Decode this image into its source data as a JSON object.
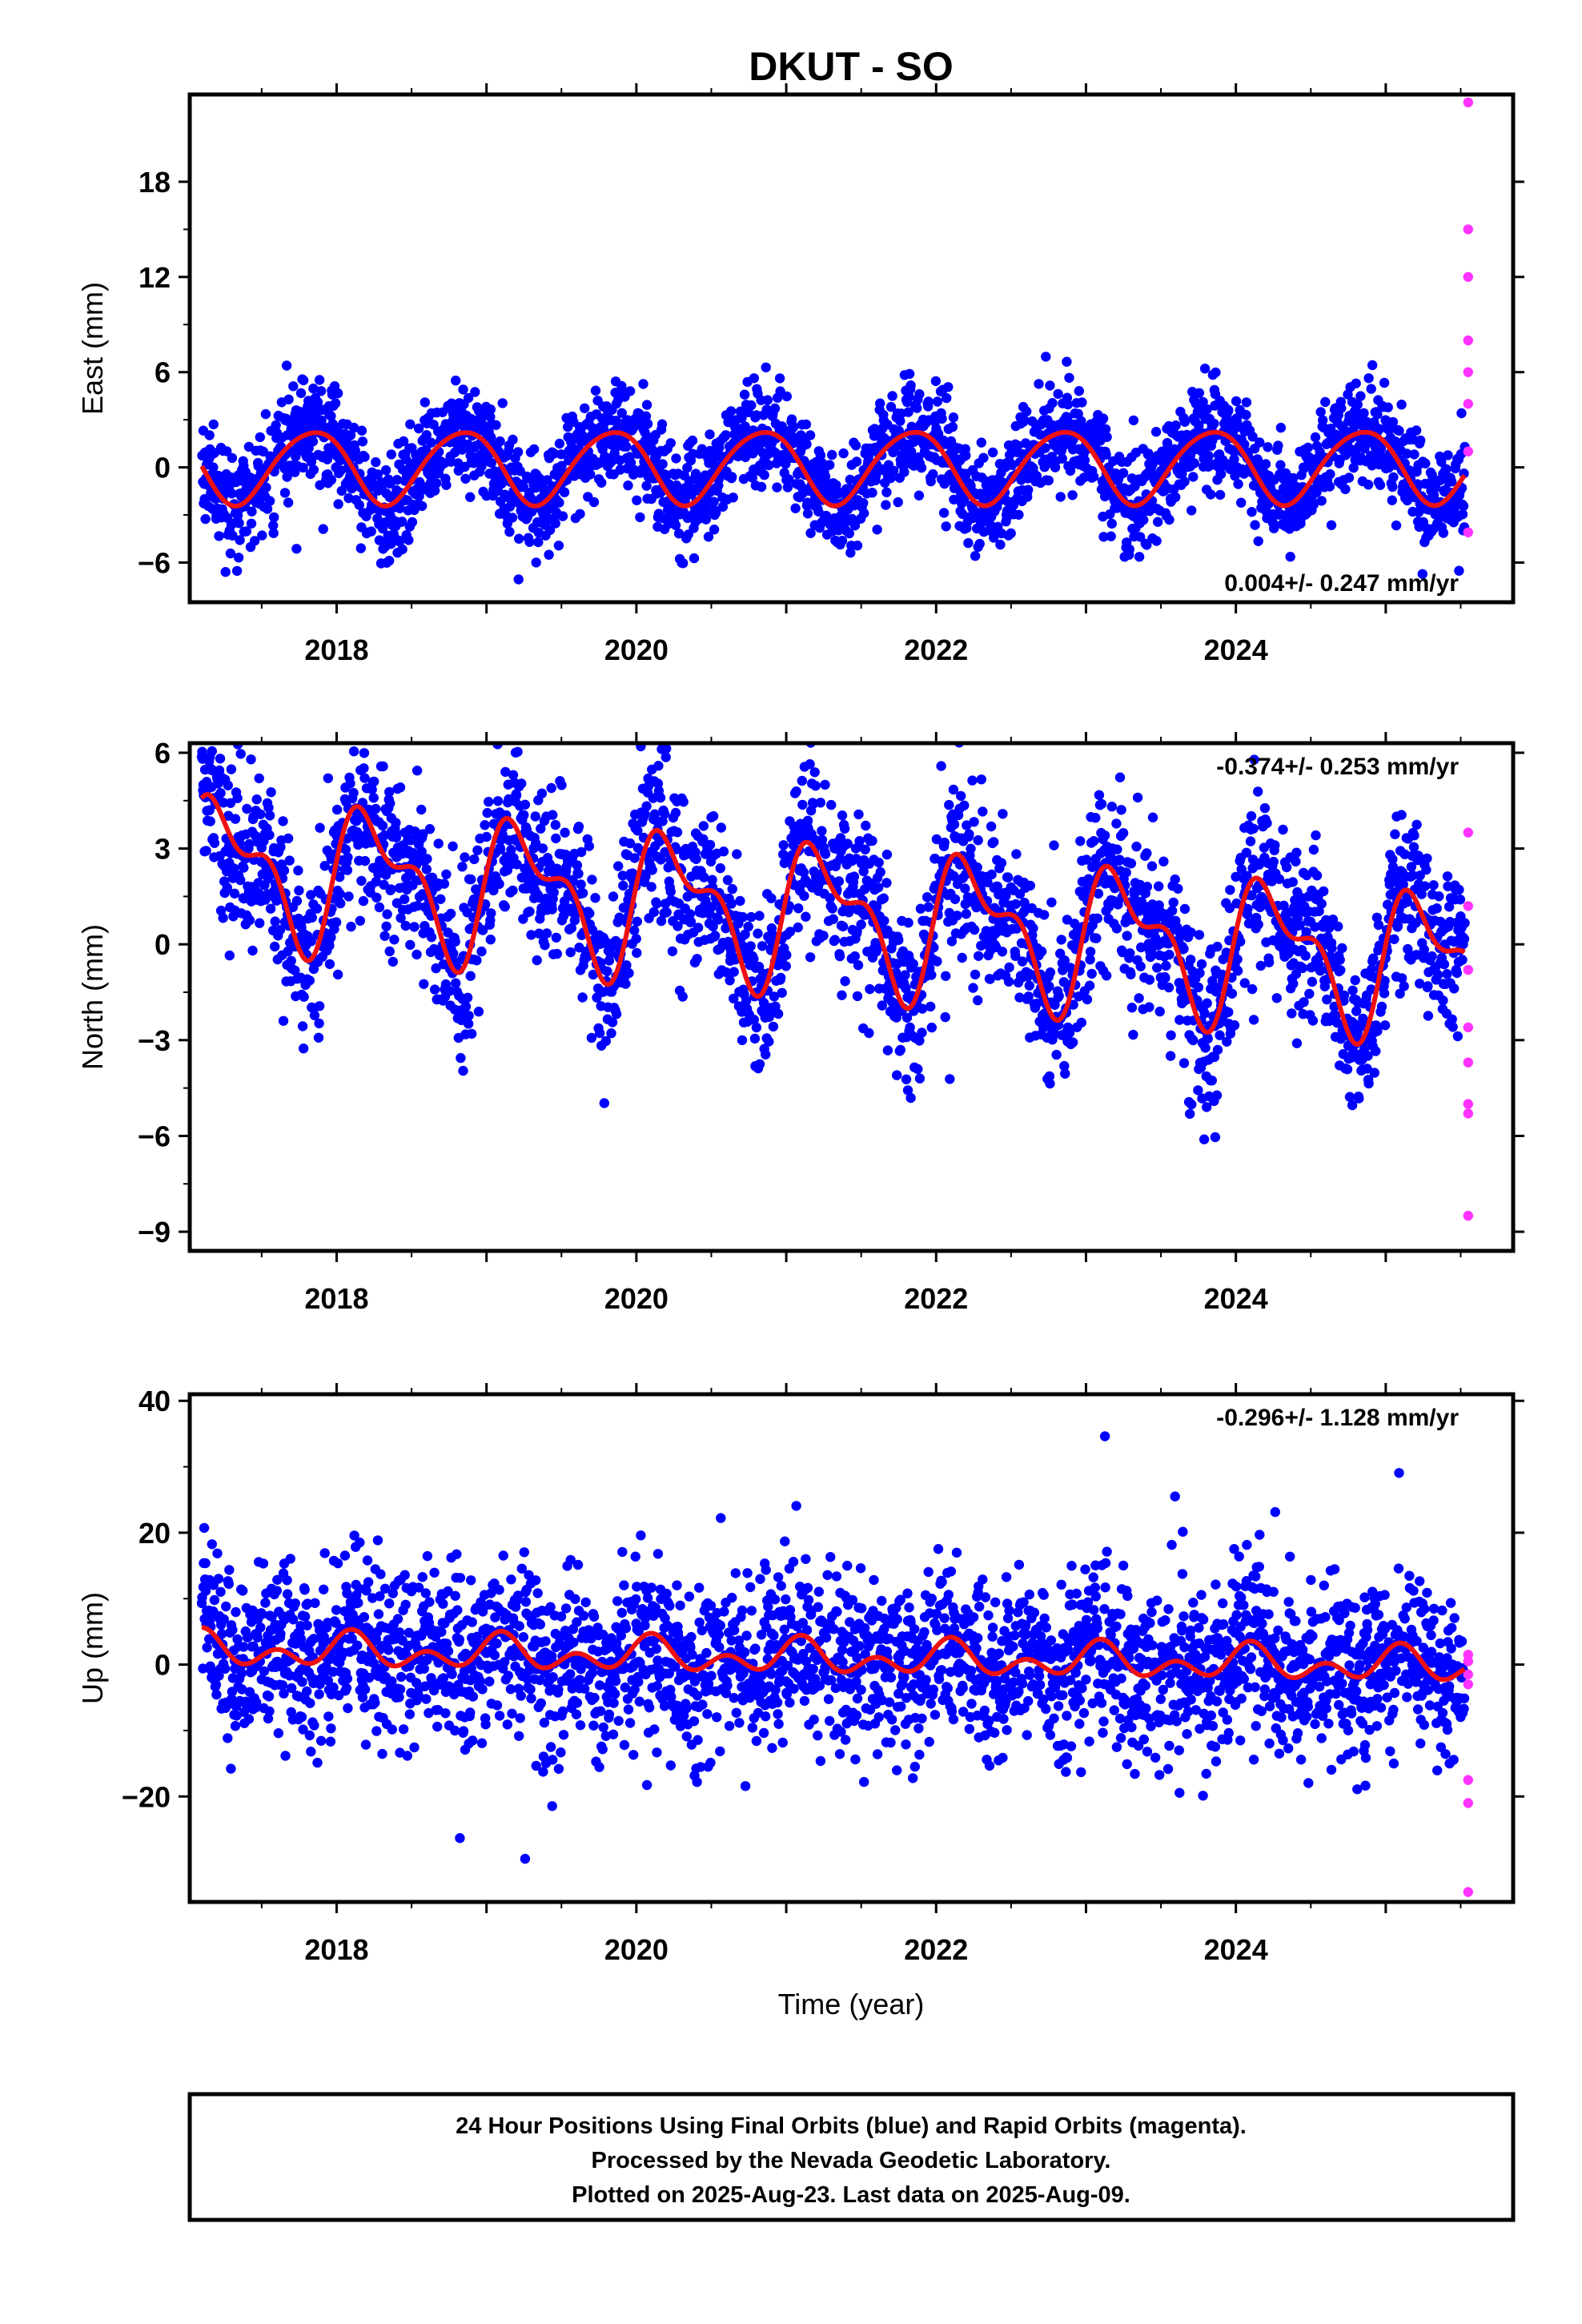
{
  "title": "DKUT - SO",
  "colors": {
    "final": "#0000ff",
    "rapid": "#ff33ff",
    "model": "#ee1111",
    "frame": "#000000"
  },
  "footer": {
    "line1": "24 Hour Positions Using Final Orbits (blue) and Rapid Orbits (magenta).",
    "line2": "Processed by the Nevada Geodetic Laboratory.",
    "line3": "Plotted on 2025-Aug-23. Last data on 2025-Aug-09."
  },
  "xlabel": "Time (year)",
  "chart_data": [
    {
      "type": "scatter",
      "ylabel": "East (mm)",
      "rate": "0.004+/- 0.247 mm/yr",
      "xlim": [
        2017.02,
        2025.85
      ],
      "ylim": [
        -8.5,
        23.5
      ],
      "yticks": [
        -6,
        0,
        6,
        12,
        18
      ],
      "xticks": [
        2018,
        2020,
        2022,
        2024
      ],
      "model": {
        "amp1": 2.3,
        "phase1": 2.6,
        "amp2": 0.25,
        "phase2": 1.0,
        "offset": 0.1,
        "slope": 0.004
      },
      "noise_sigma": 1.6,
      "series": [
        {
          "name": "Final Orbits (blue)",
          "x_start": 2017.1,
          "x_end": 2025.53,
          "step_days": 1
        },
        {
          "name": "Rapid Orbits (magenta)",
          "x": [
            2025.55,
            2025.55,
            2025.55,
            2025.55,
            2025.55,
            2025.55,
            2025.55,
            2025.55
          ],
          "y": [
            23.0,
            15.0,
            12.0,
            8.0,
            6.0,
            4.0,
            1.0,
            -4.1
          ]
        }
      ]
    },
    {
      "type": "scatter",
      "ylabel": "North (mm)",
      "rate": "-0.374+/- 0.253 mm/yr",
      "xlim": [
        2017.02,
        2025.85
      ],
      "ylim": [
        -9.6,
        6.3
      ],
      "yticks": [
        -9,
        -6,
        -3,
        0,
        3,
        6
      ],
      "xticks": [
        2018,
        2020,
        2022,
        2024
      ],
      "model": {
        "amp1": 1.9,
        "phase1": 0.0,
        "amp2": 1.0,
        "phase2": 0.5,
        "offset": 0.9,
        "slope": -0.374
      },
      "noise_sigma": 1.3,
      "series": [
        {
          "name": "Final Orbits (blue)",
          "x_start": 2017.1,
          "x_end": 2025.53,
          "step_days": 1
        },
        {
          "name": "Rapid Orbits (magenta)",
          "x": [
            2025.55,
            2025.55,
            2025.55,
            2025.55,
            2025.55,
            2025.55,
            2025.55,
            2025.55
          ],
          "y": [
            3.5,
            1.2,
            -0.8,
            -2.6,
            -3.7,
            -5.0,
            -5.3,
            -8.5
          ]
        }
      ]
    },
    {
      "type": "scatter",
      "ylabel": "Up (mm)",
      "rate": "-0.296+/- 1.128 mm/yr",
      "xlim": [
        2017.02,
        2025.85
      ],
      "ylim": [
        -36,
        41
      ],
      "yticks": [
        -20,
        0,
        20,
        40
      ],
      "xticks": [
        2018,
        2020,
        2022,
        2024
      ],
      "model": {
        "amp1": 1.6,
        "phase1": 1.0,
        "amp2": 1.8,
        "phase2": 0.3,
        "offset": 1.0,
        "slope": -0.296
      },
      "noise_sigma": 6.5,
      "series": [
        {
          "name": "Final Orbits (blue)",
          "x_start": 2017.1,
          "x_end": 2025.53,
          "step_days": 1
        },
        {
          "name": "Rapid Orbits (magenta)",
          "x": [
            2025.55,
            2025.55,
            2025.55,
            2025.55,
            2025.55,
            2025.55,
            2025.55
          ],
          "y": [
            0.5,
            -1.5,
            -3.0,
            -17.5,
            -21.0,
            -34.5,
            1.5
          ]
        }
      ]
    }
  ]
}
